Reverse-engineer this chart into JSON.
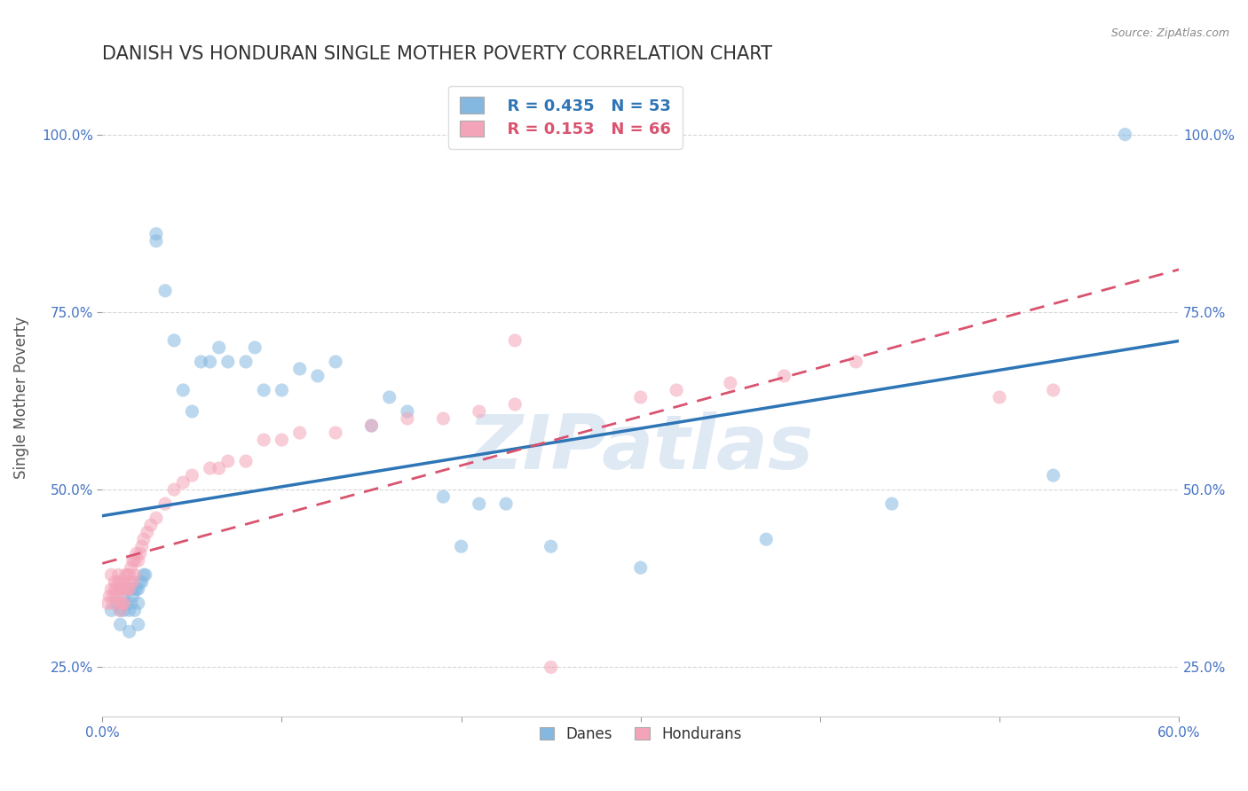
{
  "title": "DANISH VS HONDURAN SINGLE MOTHER POVERTY CORRELATION CHART",
  "source": "Source: ZipAtlas.com",
  "ylabel": "Single Mother Poverty",
  "xlim": [
    0.0,
    0.6
  ],
  "ylim": [
    0.18,
    1.08
  ],
  "xticks": [
    0.0,
    0.1,
    0.2,
    0.3,
    0.4,
    0.5,
    0.6
  ],
  "xticklabels": [
    "0.0%",
    "",
    "",
    "",
    "",
    "",
    "60.0%"
  ],
  "yticks": [
    0.25,
    0.5,
    0.75,
    1.0
  ],
  "yticklabels": [
    "25.0%",
    "50.0%",
    "75.0%",
    "100.0%"
  ],
  "blue_color": "#85b8e0",
  "pink_color": "#f4a4b8",
  "blue_line_color": "#2e75b6",
  "pink_line_color": "#d9536f",
  "legend_label_blue": "Danes",
  "legend_label_pink": "Hondurans",
  "watermark": "ZIPatlas",
  "background_color": "#ffffff",
  "danes_x": [
    0.005,
    0.008,
    0.01,
    0.01,
    0.012,
    0.012,
    0.013,
    0.014,
    0.015,
    0.015,
    0.016,
    0.016,
    0.017,
    0.018,
    0.018,
    0.019,
    0.02,
    0.02,
    0.02,
    0.021,
    0.022,
    0.023,
    0.024,
    0.03,
    0.03,
    0.035,
    0.04,
    0.045,
    0.05,
    0.055,
    0.06,
    0.065,
    0.07,
    0.08,
    0.085,
    0.09,
    0.1,
    0.11,
    0.12,
    0.13,
    0.15,
    0.16,
    0.17,
    0.19,
    0.2,
    0.21,
    0.225,
    0.25,
    0.3,
    0.37,
    0.44,
    0.53,
    0.57
  ],
  "danes_y": [
    0.33,
    0.34,
    0.31,
    0.33,
    0.33,
    0.35,
    0.34,
    0.36,
    0.3,
    0.33,
    0.34,
    0.36,
    0.35,
    0.33,
    0.36,
    0.36,
    0.31,
    0.34,
    0.36,
    0.37,
    0.37,
    0.38,
    0.38,
    0.85,
    0.86,
    0.78,
    0.71,
    0.64,
    0.61,
    0.68,
    0.68,
    0.7,
    0.68,
    0.68,
    0.7,
    0.64,
    0.64,
    0.67,
    0.66,
    0.68,
    0.59,
    0.63,
    0.61,
    0.49,
    0.42,
    0.48,
    0.48,
    0.42,
    0.39,
    0.43,
    0.48,
    0.52,
    1.0
  ],
  "hondurans_x": [
    0.003,
    0.004,
    0.005,
    0.005,
    0.006,
    0.006,
    0.007,
    0.007,
    0.008,
    0.008,
    0.009,
    0.009,
    0.01,
    0.01,
    0.01,
    0.01,
    0.011,
    0.011,
    0.012,
    0.012,
    0.013,
    0.013,
    0.014,
    0.014,
    0.015,
    0.015,
    0.016,
    0.016,
    0.017,
    0.017,
    0.018,
    0.018,
    0.019,
    0.02,
    0.021,
    0.022,
    0.023,
    0.025,
    0.027,
    0.03,
    0.035,
    0.04,
    0.045,
    0.05,
    0.06,
    0.065,
    0.07,
    0.08,
    0.09,
    0.1,
    0.11,
    0.13,
    0.15,
    0.17,
    0.19,
    0.21,
    0.23,
    0.3,
    0.32,
    0.35,
    0.38,
    0.42,
    0.5,
    0.53,
    0.23,
    0.25
  ],
  "hondurans_y": [
    0.34,
    0.35,
    0.36,
    0.38,
    0.34,
    0.35,
    0.36,
    0.37,
    0.35,
    0.36,
    0.37,
    0.38,
    0.33,
    0.34,
    0.36,
    0.37,
    0.34,
    0.36,
    0.34,
    0.37,
    0.36,
    0.38,
    0.36,
    0.38,
    0.36,
    0.38,
    0.37,
    0.39,
    0.37,
    0.4,
    0.38,
    0.4,
    0.41,
    0.4,
    0.41,
    0.42,
    0.43,
    0.44,
    0.45,
    0.46,
    0.48,
    0.5,
    0.51,
    0.52,
    0.53,
    0.53,
    0.54,
    0.54,
    0.57,
    0.57,
    0.58,
    0.58,
    0.59,
    0.6,
    0.6,
    0.61,
    0.62,
    0.63,
    0.64,
    0.65,
    0.66,
    0.68,
    0.63,
    0.64,
    0.71,
    0.25
  ]
}
